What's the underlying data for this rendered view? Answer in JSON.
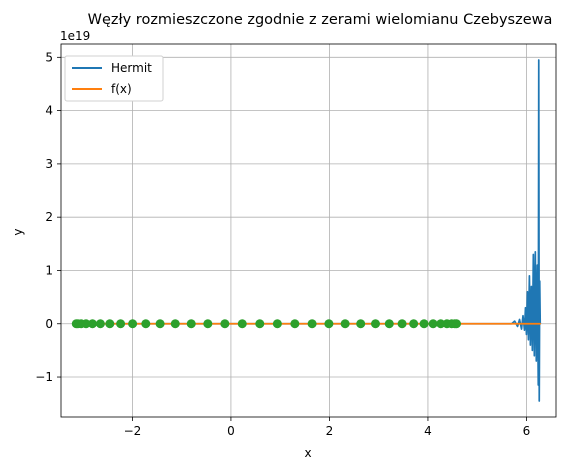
{
  "chart_data": {
    "type": "line",
    "title": "Węzły rozmieszczone zgodnie z zerami wielomianu Czebyszewa",
    "xlabel": "x",
    "ylabel": "y",
    "y_offset_label": "1e19",
    "xlim": [
      -3.45,
      6.6
    ],
    "ylim": [
      -1.75,
      5.25
    ],
    "xticks": [
      -2,
      0,
      2,
      4,
      6
    ],
    "xtick_labels": [
      "−2",
      "0",
      "2",
      "4",
      "6"
    ],
    "yticks": [
      -1,
      0,
      1,
      2,
      3,
      4,
      5
    ],
    "ytick_labels": [
      "−1",
      "0",
      "1",
      "2",
      "3",
      "4",
      "5"
    ],
    "grid": true,
    "legend": {
      "position": "top-left",
      "entries": [
        "Hermit",
        "f(x)"
      ]
    },
    "series": [
      {
        "name": "Hermit",
        "color": "#1f77b4",
        "x": [
          -3.14,
          5.7,
          5.76,
          5.82,
          5.86,
          5.9,
          5.93,
          5.96,
          5.98,
          6.0,
          6.02,
          6.04,
          6.06,
          6.08,
          6.1,
          6.12,
          6.14,
          6.16,
          6.18,
          6.2,
          6.22,
          6.24,
          6.25,
          6.26,
          6.27,
          6.28
        ],
        "values": [
          0,
          0,
          0.05,
          -0.05,
          0.08,
          -0.1,
          0.15,
          -0.12,
          0.3,
          -0.2,
          0.6,
          -0.3,
          0.9,
          -0.4,
          0.7,
          -0.5,
          1.3,
          -0.6,
          1.35,
          -0.7,
          1.1,
          -1.15,
          4.95,
          -1.45,
          0.8,
          0
        ]
      },
      {
        "name": "f(x)",
        "color": "#ff7f0e",
        "x": [
          -3.14,
          6.28
        ],
        "values": [
          0,
          0
        ]
      },
      {
        "name": "",
        "color": "#2ca02c",
        "marker": "o",
        "x": [
          -3.14,
          -3.107,
          -3.041,
          -2.942,
          -2.811,
          -2.65,
          -2.459,
          -2.24,
          -1.996,
          -1.728,
          -1.438,
          -1.13,
          -0.806,
          -0.469,
          -0.123,
          0.23,
          0.586,
          0.943,
          1.298,
          1.648,
          1.989,
          2.319,
          2.635,
          2.935,
          3.215,
          3.475,
          3.71,
          3.921,
          4.105,
          4.26,
          4.386,
          4.482,
          4.547,
          4.58
        ],
        "values": [
          0,
          0,
          0,
          0,
          0,
          0,
          0,
          0,
          0,
          0,
          0,
          0,
          0,
          0,
          0,
          0,
          0,
          0,
          0,
          0,
          0,
          0,
          0,
          0,
          0,
          0,
          0,
          0,
          0,
          0,
          0,
          0,
          0,
          0
        ]
      }
    ]
  }
}
